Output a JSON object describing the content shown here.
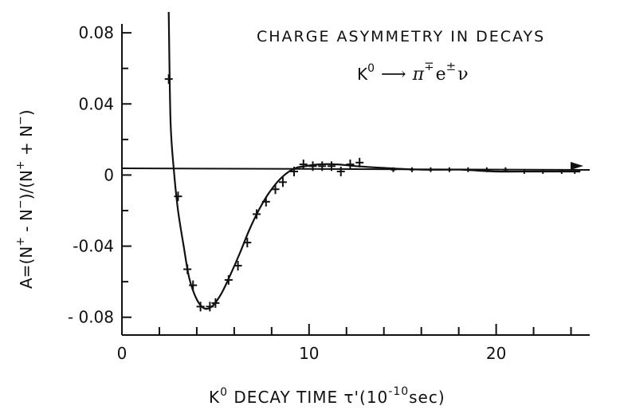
{
  "chart_data": {
    "type": "scatter",
    "title": "CHARGE ASYMMETRY IN DECAYS",
    "subtitle": {
      "k": "K",
      "k_sup": "0",
      "arrow": "⟶",
      "pi": "π",
      "pi_sup": "∓",
      "e": "e",
      "e_sup": "±",
      "nu": "ν"
    },
    "xlabel": {
      "k": "K",
      "k_sup": "0",
      "text": " DECAY TIME τ'(10",
      "exp": "-10",
      "unit": "sec)"
    },
    "ylabel": {
      "prefix": "A=(N",
      "s1": "+",
      "m1": " - N",
      "s2": "−",
      "m2": ")/(N",
      "s3": "+",
      "m3": " + N",
      "s4": "−",
      "suffix": ")"
    },
    "xlim": [
      0,
      25
    ],
    "ylim": [
      -0.09,
      0.085
    ],
    "xticks": [
      {
        "v": 0,
        "label": "0"
      },
      {
        "v": 10,
        "label": "10"
      },
      {
        "v": 20,
        "label": "20"
      }
    ],
    "yticks": [
      {
        "v": 0.08,
        "label": "0.08"
      },
      {
        "v": 0.04,
        "label": "0.04"
      },
      {
        "v": 0,
        "label": "0"
      },
      {
        "v": -0.04,
        "label": "-0.04"
      },
      {
        "v": -0.08,
        "label": "- 0.08"
      }
    ],
    "grid": false,
    "series": [
      {
        "values": [
          {
            "x": 2.5,
            "y": 0.054
          },
          {
            "x": 3.0,
            "y": -0.012
          },
          {
            "x": 3.5,
            "y": -0.053
          },
          {
            "x": 3.8,
            "y": -0.062
          },
          {
            "x": 4.2,
            "y": -0.074
          },
          {
            "x": 4.7,
            "y": -0.074
          },
          {
            "x": 5.0,
            "y": -0.072
          },
          {
            "x": 5.7,
            "y": -0.059
          },
          {
            "x": 6.2,
            "y": -0.051
          },
          {
            "x": 6.7,
            "y": -0.038
          },
          {
            "x": 7.2,
            "y": -0.022
          },
          {
            "x": 7.7,
            "y": -0.015
          },
          {
            "x": 8.2,
            "y": -0.008
          },
          {
            "x": 8.6,
            "y": -0.004
          },
          {
            "x": 9.2,
            "y": 0.002
          },
          {
            "x": 9.7,
            "y": 0.006
          },
          {
            "x": 10.2,
            "y": 0.005
          },
          {
            "x": 10.7,
            "y": 0.005
          },
          {
            "x": 11.2,
            "y": 0.005
          },
          {
            "x": 11.7,
            "y": 0.002
          },
          {
            "x": 12.2,
            "y": 0.006
          },
          {
            "x": 12.7,
            "y": 0.007
          },
          {
            "x": 14.5,
            "y": 0.003
          },
          {
            "x": 15.5,
            "y": 0.003
          },
          {
            "x": 16.5,
            "y": 0.003
          },
          {
            "x": 17.5,
            "y": 0.003
          },
          {
            "x": 18.5,
            "y": 0.003
          },
          {
            "x": 19.5,
            "y": 0.003
          },
          {
            "x": 20.5,
            "y": 0.003
          },
          {
            "x": 21.5,
            "y": 0.002
          },
          {
            "x": 22.5,
            "y": 0.002
          },
          {
            "x": 23.5,
            "y": 0.002
          },
          {
            "x": 24.2,
            "y": 0.002
          }
        ]
      }
    ],
    "fit_curve": [
      {
        "x": 2.5,
        "y": 0.095
      },
      {
        "x": 2.6,
        "y": 0.03
      },
      {
        "x": 2.8,
        "y": 0.0
      },
      {
        "x": 3.0,
        "y": -0.02
      },
      {
        "x": 3.3,
        "y": -0.04
      },
      {
        "x": 3.6,
        "y": -0.058
      },
      {
        "x": 4.0,
        "y": -0.07
      },
      {
        "x": 4.4,
        "y": -0.075
      },
      {
        "x": 4.8,
        "y": -0.074
      },
      {
        "x": 5.3,
        "y": -0.067
      },
      {
        "x": 5.8,
        "y": -0.056
      },
      {
        "x": 6.3,
        "y": -0.044
      },
      {
        "x": 6.8,
        "y": -0.031
      },
      {
        "x": 7.3,
        "y": -0.02
      },
      {
        "x": 7.8,
        "y": -0.011
      },
      {
        "x": 8.3,
        "y": -0.004
      },
      {
        "x": 8.8,
        "y": 0.001
      },
      {
        "x": 9.3,
        "y": 0.004
      },
      {
        "x": 9.8,
        "y": 0.005
      },
      {
        "x": 10.5,
        "y": 0.006
      },
      {
        "x": 11.5,
        "y": 0.006
      },
      {
        "x": 12.5,
        "y": 0.005
      },
      {
        "x": 14.0,
        "y": 0.004
      },
      {
        "x": 16.0,
        "y": 0.003
      },
      {
        "x": 18.0,
        "y": 0.003
      },
      {
        "x": 20.0,
        "y": 0.002
      },
      {
        "x": 22.0,
        "y": 0.002
      },
      {
        "x": 24.5,
        "y": 0.002
      }
    ]
  }
}
